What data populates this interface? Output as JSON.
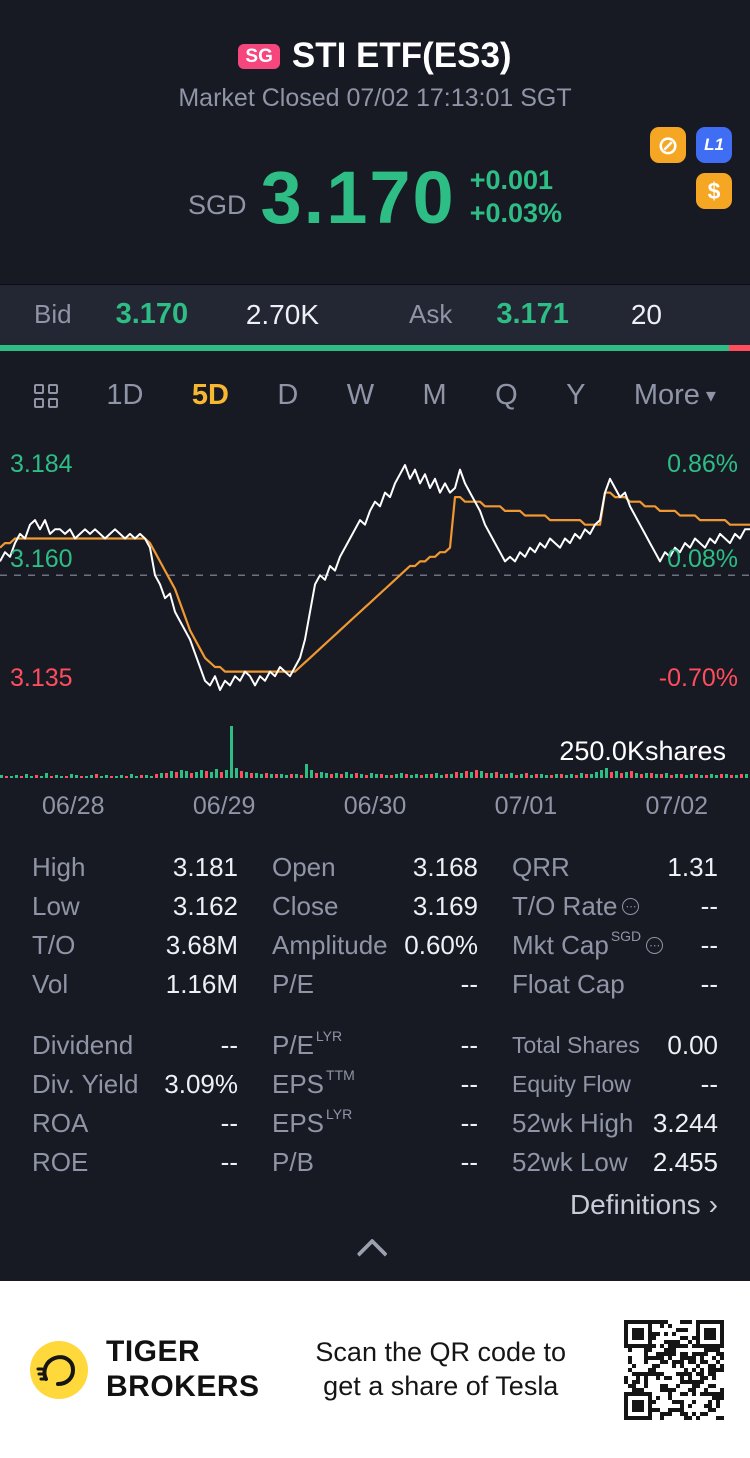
{
  "theme": {
    "bg": "#171a23",
    "strip": "#232633",
    "green": "#2ebd85",
    "red": "#ff4d5e",
    "yellow": "#f7b731",
    "orange": "#f09832",
    "gray": "#8f95a6",
    "badge_pink": "#f5477e",
    "badge_blue": "#3f6df4",
    "badge_amber": "#f5a623",
    "brand_yellow": "#ffd83b"
  },
  "header": {
    "market_badge": "SG",
    "title": "STI ETF(ES3)",
    "status_line": "Market Closed 07/02 17:13:01 SGT"
  },
  "price": {
    "currency": "SGD",
    "last": "3.170",
    "change": "+0.001",
    "change_pct": "+0.03%",
    "icons": {
      "restriction": "⊘",
      "level1": "L1",
      "dollar": "$"
    }
  },
  "quote": {
    "bid_label": "Bid",
    "bid_price": "3.170",
    "bid_size": "2.70K",
    "ask_label": "Ask",
    "ask_price": "3.171",
    "ask_size": "20",
    "bid_ratio": 0.972
  },
  "tabs": {
    "items": [
      "1D",
      "5D",
      "D",
      "W",
      "M",
      "Q",
      "Y"
    ],
    "selected": "5D",
    "more_label": "More"
  },
  "icons": {
    "caret_down": "▾",
    "info_dots": "⋯",
    "definitions_arrow": "›"
  },
  "chart_data": {
    "type": "line",
    "title": "STI ETF(ES3) 5D intraday price",
    "x_axis": [
      "06/28",
      "06/29",
      "06/30",
      "07/01",
      "07/02"
    ],
    "y_labels": {
      "high": "3.184",
      "mid": "3.160",
      "low": "3.135"
    },
    "pct_labels": {
      "high": "0.86%",
      "mid": "0.08%",
      "low": "-0.70%"
    },
    "volume_label": "250.0Kshares",
    "price_scale": {
      "top_mils": 184,
      "bottom_mils": 135
    },
    "baseline_mils": 160,
    "x_step": 5,
    "grid": "dashed-baseline-only",
    "legend": "none",
    "series": [
      {
        "name": "price",
        "color": "#ffffff",
        "unit": "price = 3 + value/1000",
        "values": [
          163,
          165,
          164,
          167,
          169,
          168,
          171,
          172,
          170,
          172,
          169,
          170,
          170,
          169,
          170,
          168,
          169,
          170,
          169,
          170,
          169,
          168,
          169,
          170,
          169,
          168,
          169,
          168,
          169,
          168,
          166,
          160,
          158,
          155,
          156,
          152,
          150,
          148,
          146,
          143,
          140,
          137,
          136,
          138,
          135,
          137,
          136,
          138,
          137,
          139,
          138,
          136,
          138,
          137,
          139,
          138,
          140,
          139,
          138,
          140,
          142,
          146,
          152,
          158,
          160,
          159,
          162,
          161,
          164,
          166,
          168,
          170,
          172,
          171,
          174,
          176,
          175,
          178,
          177,
          180,
          182,
          184,
          181,
          183,
          180,
          182,
          179,
          181,
          178,
          180,
          178,
          179,
          183,
          180,
          178,
          176,
          174,
          171,
          169,
          167,
          165,
          163,
          164,
          163,
          165,
          164,
          166,
          165,
          167,
          166,
          168,
          167,
          166,
          168,
          167,
          169,
          168,
          170,
          169,
          171,
          172,
          178,
          181,
          179,
          177,
          178,
          175,
          173,
          171,
          169,
          167,
          165,
          163,
          165,
          164,
          166,
          165,
          167,
          166,
          168,
          167,
          166,
          168,
          167,
          169,
          168,
          167,
          169,
          168,
          170,
          170
        ]
      },
      {
        "name": "avg",
        "color": "#f09832",
        "unit": "price = 3 + value/1000",
        "values": [
          166,
          167,
          167,
          168,
          168,
          168,
          168,
          168,
          168,
          168,
          168,
          168,
          168,
          168,
          168,
          168,
          168,
          168,
          168,
          168,
          168,
          168,
          168,
          168,
          168,
          168,
          168,
          168,
          168,
          168,
          167,
          165,
          163,
          161,
          159,
          157,
          154,
          151,
          148,
          146,
          144,
          142,
          141,
          140,
          140,
          139,
          139,
          139,
          139,
          139,
          139,
          139,
          139,
          139,
          139,
          139,
          139,
          139,
          139,
          139,
          140,
          141,
          142,
          143,
          144,
          145,
          146,
          147,
          148,
          149,
          150,
          151,
          152,
          153,
          154,
          155,
          156,
          157,
          158,
          159,
          160,
          161,
          162,
          162,
          163,
          163,
          164,
          164,
          165,
          165,
          166,
          177,
          177,
          176,
          176,
          176,
          176,
          175,
          175,
          175,
          175,
          174,
          174,
          174,
          174,
          173,
          173,
          173,
          173,
          173,
          172,
          172,
          172,
          172,
          172,
          172,
          172,
          171,
          171,
          171,
          171,
          178,
          178,
          177,
          177,
          177,
          176,
          176,
          176,
          175,
          175,
          175,
          174,
          174,
          174,
          174,
          173,
          173,
          173,
          173,
          172,
          172,
          172,
          172,
          172,
          172,
          171,
          171,
          171,
          171,
          171
        ]
      }
    ],
    "volume": {
      "note": "signed px heights, positive=up(green) negative=down(red), peak bar ~250.0K shares",
      "bars": [
        3,
        -2,
        2,
        3,
        -2,
        4,
        2,
        -3,
        2,
        5,
        -2,
        3,
        2,
        -2,
        4,
        3,
        -2,
        2,
        3,
        -4,
        2,
        3,
        -2,
        2,
        3,
        -2,
        4,
        2,
        -3,
        3,
        2,
        -4,
        5,
        -5,
        7,
        -6,
        8,
        7,
        -5,
        6,
        8,
        -7,
        6,
        9,
        -6,
        8,
        52,
        10,
        -7,
        6,
        -5,
        5,
        4,
        -5,
        4,
        -4,
        4,
        3,
        -4,
        4,
        -3,
        14,
        8,
        -5,
        6,
        5,
        -4,
        5,
        -4,
        6,
        4,
        -5,
        4,
        -3,
        5,
        4,
        -4,
        3,
        -3,
        4,
        5,
        -4,
        3,
        4,
        -3,
        4,
        -4,
        5,
        3,
        -4,
        4,
        -6,
        5,
        -7,
        6,
        -8,
        7,
        -5,
        5,
        -6,
        4,
        -4,
        5,
        -3,
        4,
        -5,
        3,
        -4,
        4,
        3,
        -3,
        4,
        -4,
        3,
        4,
        -3,
        5,
        -4,
        4,
        6,
        8,
        10,
        -6,
        7,
        -5,
        6,
        -7,
        5,
        -4,
        5,
        -5,
        4,
        -4,
        5,
        -3,
        4,
        -4,
        3,
        4,
        -4,
        3,
        -3,
        4,
        3,
        -4,
        4,
        -3,
        3,
        -4,
        4,
        3
      ]
    }
  },
  "stats": {
    "col1": [
      {
        "label": "High",
        "value": "3.181"
      },
      {
        "label": "Low",
        "value": "3.162"
      },
      {
        "label": "T/O",
        "value": "3.68M"
      },
      {
        "label": "Vol",
        "value": "1.16M"
      },
      {
        "label": "Dividend",
        "value": "--"
      },
      {
        "label": "Div. Yield",
        "value": "3.09%"
      },
      {
        "label": "ROA",
        "value": "--"
      },
      {
        "label": "ROE",
        "value": "--"
      }
    ],
    "col2": [
      {
        "label": "Open",
        "value": "3.168"
      },
      {
        "label": "Close",
        "value": "3.169"
      },
      {
        "label": "Amplitude",
        "value": "0.60%"
      },
      {
        "label": "P/E",
        "value": "--"
      },
      {
        "label": "P/E",
        "sup": "LYR",
        "value": "--"
      },
      {
        "label": "EPS",
        "sup": "TTM",
        "value": "--"
      },
      {
        "label": "EPS",
        "sup": "LYR",
        "value": "--"
      },
      {
        "label": "P/B",
        "value": "--"
      }
    ],
    "col3": [
      {
        "label": "QRR",
        "value": "1.31"
      },
      {
        "label": "T/O Rate",
        "value": "--"
      },
      {
        "label": "Mkt Cap",
        "sup": "SGD",
        "value": "--"
      },
      {
        "label": "Float Cap",
        "value": "--"
      },
      {
        "label": "Total Shares",
        "value": "0.00"
      },
      {
        "label": "Equity Flow",
        "value": "--"
      },
      {
        "label": "52wk High",
        "value": "3.244"
      },
      {
        "label": "52wk Low",
        "value": "2.455"
      }
    ]
  },
  "definitions": {
    "label": "Definitions",
    "arrow": "›"
  },
  "footer": {
    "brand_line1": "TIGER",
    "brand_line2": "BROKERS",
    "promo_line1": "Scan the QR code to",
    "promo_line2": "get a share of Tesla"
  }
}
